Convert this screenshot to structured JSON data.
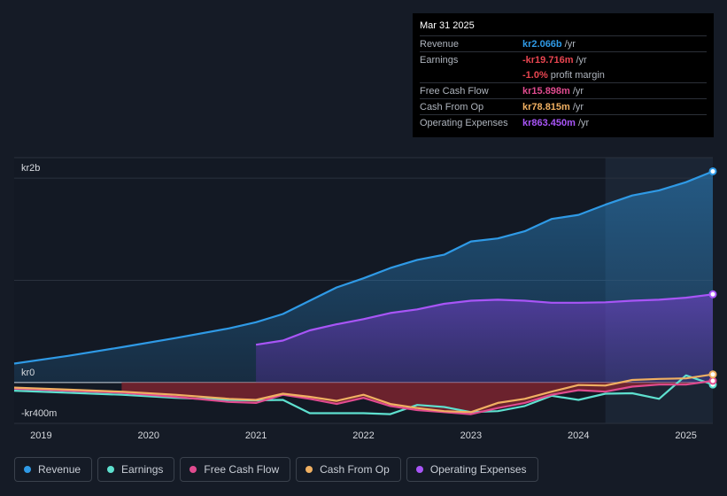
{
  "tooltip": {
    "date": "Mar 31 2025",
    "rows": [
      {
        "label": "Revenue",
        "value": "kr2.066b",
        "unit": "/yr",
        "color": "#2f9ae6"
      },
      {
        "label": "Earnings",
        "value": "-kr19.716m",
        "unit": "/yr",
        "color": "#e84550"
      },
      {
        "label": "",
        "value": "-1.0%",
        "unit": "profit margin",
        "color": "#e84550"
      },
      {
        "label": "Free Cash Flow",
        "value": "kr15.898m",
        "unit": "/yr",
        "color": "#e04b8f"
      },
      {
        "label": "Cash From Op",
        "value": "kr78.815m",
        "unit": "/yr",
        "color": "#f0b062"
      },
      {
        "label": "Operating Expenses",
        "value": "kr863.450m",
        "unit": "/yr",
        "color": "#a855f7"
      }
    ]
  },
  "legend": [
    {
      "label": "Revenue",
      "color": "#2f9ae6"
    },
    {
      "label": "Earnings",
      "color": "#5ee0cf"
    },
    {
      "label": "Free Cash Flow",
      "color": "#e04b8f"
    },
    {
      "label": "Cash From Op",
      "color": "#f0b062"
    },
    {
      "label": "Operating Expenses",
      "color": "#a855f7"
    }
  ],
  "chart_data": {
    "type": "line",
    "title": "",
    "xlabel": "",
    "ylabel": "",
    "y_unit": "kr millions",
    "ylim": [
      -400,
      2200
    ],
    "y_tick_labels": [
      "kr2b",
      "kr0",
      "-kr400m"
    ],
    "y_tick_values": [
      2000,
      0,
      -400
    ],
    "x_tick_labels": [
      "2019",
      "2020",
      "2021",
      "2022",
      "2023",
      "2024",
      "2025"
    ],
    "x_tick_values": [
      2019,
      2020,
      2021,
      2022,
      2023,
      2024,
      2025
    ],
    "xlim": [
      2018.75,
      2025.25
    ],
    "forecast_start": 2024.25,
    "series": [
      {
        "name": "Revenue",
        "color": "#2f9ae6",
        "points": [
          [
            2018.75,
            185
          ],
          [
            2019.25,
            260
          ],
          [
            2019.75,
            345
          ],
          [
            2020.25,
            435
          ],
          [
            2020.75,
            530
          ],
          [
            2021.0,
            590
          ],
          [
            2021.25,
            670
          ],
          [
            2021.5,
            800
          ],
          [
            2021.75,
            930
          ],
          [
            2022.0,
            1020
          ],
          [
            2022.25,
            1120
          ],
          [
            2022.5,
            1200
          ],
          [
            2022.75,
            1250
          ],
          [
            2023.0,
            1380
          ],
          [
            2023.25,
            1410
          ],
          [
            2023.5,
            1480
          ],
          [
            2023.75,
            1600
          ],
          [
            2024.0,
            1640
          ],
          [
            2024.25,
            1740
          ],
          [
            2024.5,
            1830
          ],
          [
            2024.75,
            1880
          ],
          [
            2025.0,
            1960
          ],
          [
            2025.25,
            2066
          ]
        ]
      },
      {
        "name": "Operating Expenses",
        "color": "#a855f7",
        "points": [
          [
            2021.0,
            370
          ],
          [
            2021.25,
            410
          ],
          [
            2021.5,
            510
          ],
          [
            2021.75,
            570
          ],
          [
            2022.0,
            620
          ],
          [
            2022.25,
            680
          ],
          [
            2022.5,
            715
          ],
          [
            2022.75,
            770
          ],
          [
            2023.0,
            800
          ],
          [
            2023.25,
            810
          ],
          [
            2023.5,
            800
          ],
          [
            2023.75,
            780
          ],
          [
            2024.0,
            780
          ],
          [
            2024.25,
            785
          ],
          [
            2024.5,
            800
          ],
          [
            2024.75,
            810
          ],
          [
            2025.0,
            830
          ],
          [
            2025.25,
            863
          ]
        ]
      },
      {
        "name": "Earnings",
        "color": "#5ee0cf",
        "points": [
          [
            2018.75,
            -80
          ],
          [
            2019.25,
            -100
          ],
          [
            2019.75,
            -120
          ],
          [
            2020.25,
            -150
          ],
          [
            2020.75,
            -170
          ],
          [
            2021.0,
            -175
          ],
          [
            2021.25,
            -170
          ],
          [
            2021.5,
            -300
          ],
          [
            2021.75,
            -300
          ],
          [
            2022.0,
            -300
          ],
          [
            2022.25,
            -310
          ],
          [
            2022.5,
            -220
          ],
          [
            2022.75,
            -240
          ],
          [
            2023.0,
            -290
          ],
          [
            2023.25,
            -280
          ],
          [
            2023.5,
            -230
          ],
          [
            2023.75,
            -130
          ],
          [
            2024.0,
            -170
          ],
          [
            2024.25,
            -110
          ],
          [
            2024.5,
            -105
          ],
          [
            2024.75,
            -160
          ],
          [
            2025.0,
            70
          ],
          [
            2025.25,
            -20
          ]
        ]
      },
      {
        "name": "Free Cash Flow",
        "color": "#e04b8f",
        "points": [
          [
            2018.75,
            -60
          ],
          [
            2019.25,
            -80
          ],
          [
            2019.75,
            -100
          ],
          [
            2020.25,
            -140
          ],
          [
            2020.75,
            -190
          ],
          [
            2021.0,
            -200
          ],
          [
            2021.25,
            -120
          ],
          [
            2021.5,
            -160
          ],
          [
            2021.75,
            -210
          ],
          [
            2022.0,
            -150
          ],
          [
            2022.25,
            -230
          ],
          [
            2022.5,
            -270
          ],
          [
            2022.75,
            -290
          ],
          [
            2023.0,
            -310
          ],
          [
            2023.25,
            -250
          ],
          [
            2023.5,
            -200
          ],
          [
            2023.75,
            -120
          ],
          [
            2024.0,
            -75
          ],
          [
            2024.25,
            -90
          ],
          [
            2024.5,
            -40
          ],
          [
            2024.75,
            -20
          ],
          [
            2025.0,
            -20
          ],
          [
            2025.25,
            16
          ]
        ]
      },
      {
        "name": "Cash From Op",
        "color": "#f0b062",
        "points": [
          [
            2018.75,
            -50
          ],
          [
            2019.25,
            -70
          ],
          [
            2019.75,
            -90
          ],
          [
            2020.25,
            -120
          ],
          [
            2020.75,
            -160
          ],
          [
            2021.0,
            -170
          ],
          [
            2021.25,
            -110
          ],
          [
            2021.5,
            -140
          ],
          [
            2021.75,
            -180
          ],
          [
            2022.0,
            -120
          ],
          [
            2022.25,
            -210
          ],
          [
            2022.5,
            -250
          ],
          [
            2022.75,
            -280
          ],
          [
            2023.0,
            -290
          ],
          [
            2023.25,
            -200
          ],
          [
            2023.5,
            -160
          ],
          [
            2023.75,
            -90
          ],
          [
            2024.0,
            -25
          ],
          [
            2024.25,
            -30
          ],
          [
            2024.5,
            25
          ],
          [
            2024.75,
            35
          ],
          [
            2025.0,
            40
          ],
          [
            2025.25,
            79
          ]
        ]
      }
    ]
  }
}
